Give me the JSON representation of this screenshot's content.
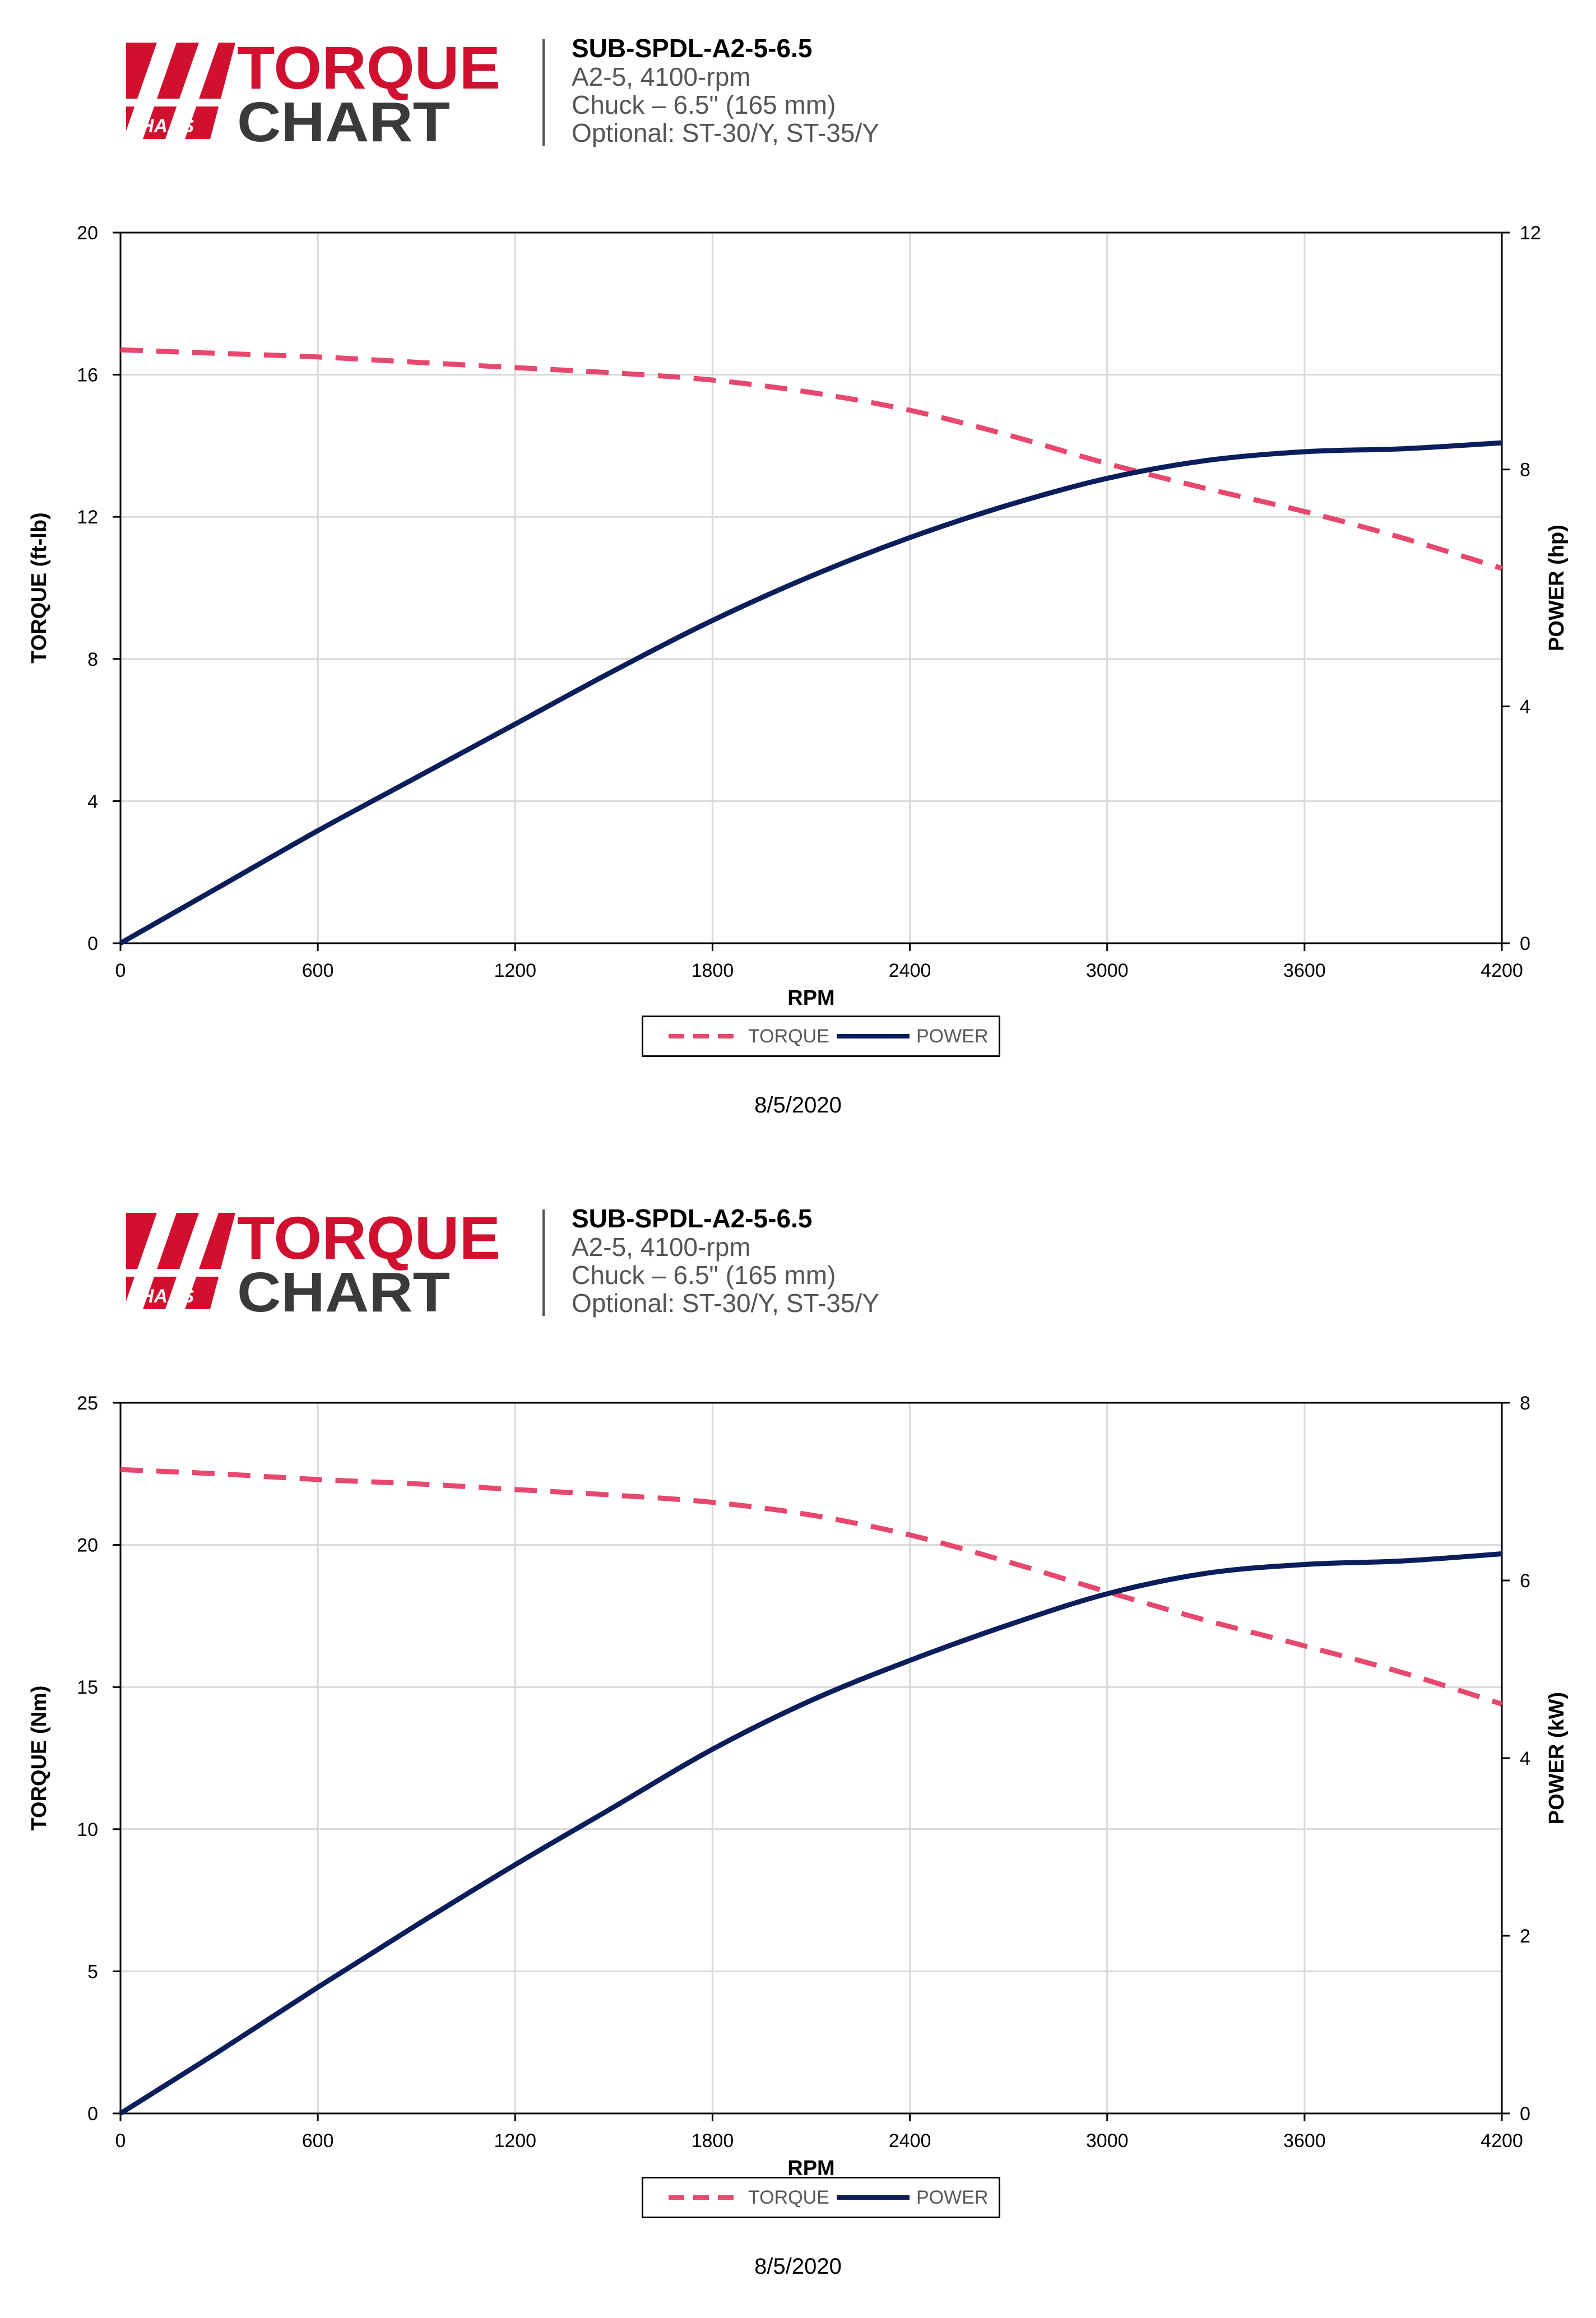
{
  "logo": {
    "word1": "TORQUE",
    "word2": "CHART",
    "brand": "HAAS"
  },
  "header": {
    "title": "SUB-SPDL-A2-5-6.5",
    "line1": "A2-5, 4100-rpm",
    "line2": "Chuck – 6.5\" (165 mm)",
    "line3": "Optional: ST-30/Y, ST-35/Y"
  },
  "legend": {
    "torque": "TORQUE",
    "power": "POWER"
  },
  "date": "8/5/2020",
  "colors": {
    "torque": "#E8486E",
    "power": "#0B1E5B",
    "brand_red": "#D0102E",
    "brand_gray": "#3A3A3A",
    "grid": "#D9D9D9"
  },
  "chart_data": [
    {
      "type": "line",
      "xlabel": "RPM",
      "ylabel": "TORQUE (ft-lb)",
      "y2label": "POWER (hp)",
      "xlim": [
        0,
        4200
      ],
      "ylim": [
        0,
        20
      ],
      "y2lim": [
        0,
        12
      ],
      "xticks": [
        0,
        600,
        1200,
        1800,
        2400,
        3000,
        3600,
        4200
      ],
      "yticks": [
        0,
        4,
        8,
        12,
        16,
        20
      ],
      "y2ticks": [
        0,
        4,
        8,
        12
      ],
      "grid": true,
      "legend_position": "bottom",
      "series": [
        {
          "name": "TORQUE",
          "axis": "left",
          "style": "dashed",
          "x": [
            0,
            300,
            600,
            900,
            1200,
            1500,
            1800,
            2100,
            2400,
            2700,
            3000,
            3300,
            3600,
            3900,
            4200
          ],
          "y": [
            16.7,
            16.6,
            16.5,
            16.35,
            16.2,
            16.05,
            15.85,
            15.5,
            15.0,
            14.3,
            13.5,
            12.8,
            12.15,
            11.4,
            10.55
          ]
        },
        {
          "name": "POWER",
          "axis": "right",
          "style": "solid",
          "x": [
            0,
            300,
            600,
            900,
            1200,
            1500,
            1800,
            2100,
            2400,
            2700,
            3000,
            3300,
            3600,
            3900,
            4200
          ],
          "y": [
            0,
            0.95,
            1.9,
            2.8,
            3.7,
            4.6,
            5.45,
            6.2,
            6.85,
            7.4,
            7.85,
            8.15,
            8.3,
            8.35,
            8.45
          ]
        }
      ]
    },
    {
      "type": "line",
      "xlabel": "RPM",
      "ylabel": "TORQUE (Nm)",
      "y2label": "POWER (kW)",
      "xlim": [
        0,
        4200
      ],
      "ylim": [
        0,
        25
      ],
      "y2lim": [
        0,
        8
      ],
      "xticks": [
        0,
        600,
        1200,
        1800,
        2400,
        3000,
        3600,
        4200
      ],
      "yticks": [
        0,
        5,
        10,
        15,
        20,
        25
      ],
      "y2ticks": [
        0,
        2,
        4,
        6,
        8
      ],
      "grid": true,
      "legend_position": "bottom",
      "series": [
        {
          "name": "TORQUE",
          "axis": "left",
          "style": "dashed",
          "x": [
            0,
            300,
            600,
            900,
            1200,
            1500,
            1800,
            2100,
            2400,
            2700,
            3000,
            3300,
            3600,
            3900,
            4200
          ],
          "y": [
            22.65,
            22.5,
            22.3,
            22.15,
            21.95,
            21.75,
            21.5,
            21.05,
            20.35,
            19.4,
            18.35,
            17.35,
            16.45,
            15.5,
            14.4
          ]
        },
        {
          "name": "POWER",
          "axis": "right",
          "style": "solid",
          "x": [
            0,
            300,
            600,
            900,
            1200,
            1500,
            1800,
            2100,
            2400,
            2700,
            3000,
            3300,
            3600,
            3900,
            4200
          ],
          "y": [
            0,
            0.7,
            1.42,
            2.12,
            2.8,
            3.45,
            4.1,
            4.65,
            5.1,
            5.5,
            5.85,
            6.08,
            6.18,
            6.22,
            6.3
          ]
        }
      ]
    }
  ]
}
